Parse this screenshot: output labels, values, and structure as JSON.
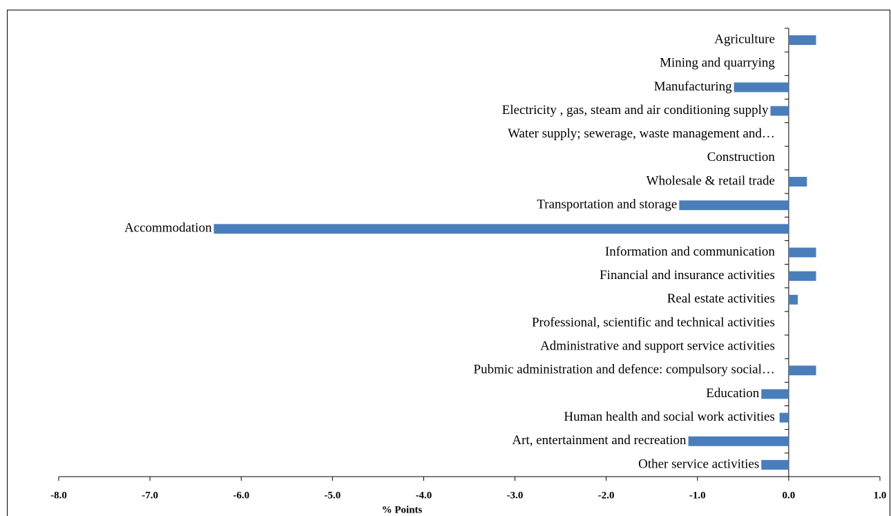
{
  "chart_data": {
    "type": "barh",
    "x_label": "% Points",
    "categories": [
      "Agriculture",
      "Mining and quarrying",
      "Manufacturing",
      "Electricity , gas, steam and air conditioning supply",
      "Water supply; sewerage, waste management and…",
      "Construction",
      "Wholesale & retail trade",
      "Transportation and storage",
      "Accommodation",
      "Information and communication",
      "Financial and insurance activities",
      "Real estate activities",
      "Professional, scientific and technical activities",
      "Administrative and support service activities",
      "Pubmic administration  and defence: compulsory social…",
      "Education",
      "Human health and social work activities",
      "Art, entertainment and recreation",
      "Other service activities"
    ],
    "values": [
      0.3,
      0,
      -0.6,
      -0.2,
      0,
      0,
      0.2,
      -1.2,
      -6.3,
      0.3,
      0.3,
      0.1,
      0,
      0,
      0.3,
      -0.3,
      -0.1,
      -1.1,
      -0.3
    ],
    "color": "#4a7ebb",
    "xlim": [
      -8,
      1
    ],
    "xticks": [
      {
        "value": -8,
        "label": "-8.0"
      },
      {
        "value": -7,
        "label": "-7.0"
      },
      {
        "value": -6,
        "label": "-6.0"
      },
      {
        "value": -5,
        "label": "-5.0"
      },
      {
        "value": -4,
        "label": "-4.0"
      },
      {
        "value": -3,
        "label": "-3.0"
      },
      {
        "value": -2,
        "label": "-2.0"
      },
      {
        "value": -1,
        "label": "-1.0"
      },
      {
        "value": 0,
        "label": "0.0"
      },
      {
        "value": 1,
        "label": "1.0"
      }
    ],
    "grid": false
  }
}
